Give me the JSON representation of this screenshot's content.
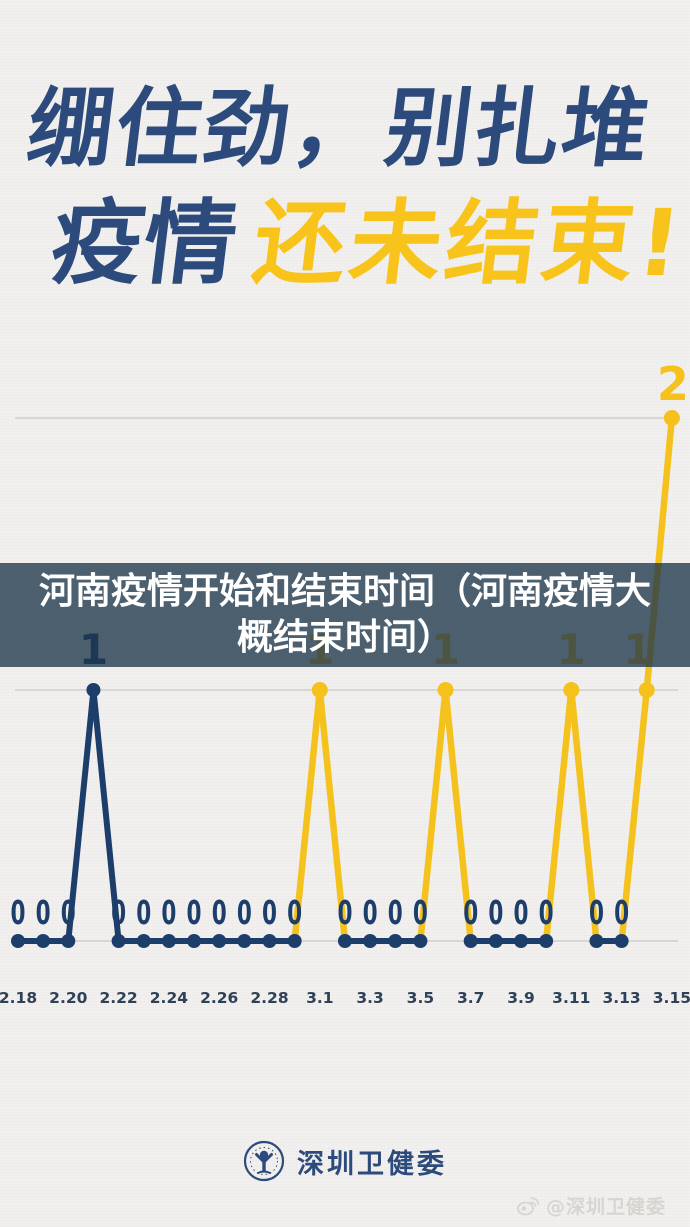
{
  "page": {
    "background": "#f1f0ee"
  },
  "header": {
    "line1_left": "绷住劲，",
    "line1_right": "别扎堆",
    "line2_navy": "疫情",
    "line2_yellow": "还未结束!",
    "navy_color": "#2c4b7c",
    "yellow_color": "#f8c41c"
  },
  "overlay": {
    "text": "河南疫情开始和结束时间（河南疫情大概结束时间）"
  },
  "chart_data": {
    "type": "line",
    "title": "",
    "xlabel": "",
    "ylabel": "",
    "ylim": [
      0,
      2
    ],
    "grid": true,
    "gridline_values": [
      0,
      1,
      2
    ],
    "x": [
      "2.18",
      "2.19",
      "2.20",
      "2.21",
      "2.22",
      "2.23",
      "2.24",
      "2.25",
      "2.26",
      "2.27",
      "2.28",
      "2.29",
      "3.1",
      "3.2",
      "3.3",
      "3.4",
      "3.5",
      "3.6",
      "3.7",
      "3.8",
      "3.9",
      "3.10",
      "3.11",
      "3.12",
      "3.13",
      "3.14",
      "3.15"
    ],
    "values": [
      0,
      0,
      0,
      1,
      0,
      0,
      0,
      0,
      0,
      0,
      0,
      0,
      1,
      0,
      0,
      0,
      0,
      1,
      0,
      0,
      0,
      0,
      1,
      0,
      0,
      1,
      2
    ],
    "point_colors": [
      "navy",
      "navy",
      "navy",
      "navy",
      "navy",
      "navy",
      "navy",
      "navy",
      "navy",
      "navy",
      "navy",
      "navy",
      "yellow",
      "navy",
      "navy",
      "navy",
      "navy",
      "yellow",
      "navy",
      "navy",
      "navy",
      "navy",
      "yellow",
      "navy",
      "navy",
      "yellow",
      "yellow"
    ],
    "point_labels": [
      "0",
      "0",
      "0",
      "1",
      "0",
      "0",
      "0",
      "0",
      "0",
      "0",
      "0",
      "0",
      "1",
      "0",
      "0",
      "0",
      "0",
      "1",
      "0",
      "0",
      "0",
      "0",
      "1",
      "0",
      "0",
      "1",
      "2"
    ],
    "x_tick_labels": [
      "2.18",
      "2.20",
      "2.22",
      "2.24",
      "2.26",
      "2.28",
      "3.1",
      "3.3",
      "3.5",
      "3.7",
      "3.9",
      "3.11",
      "3.13",
      "3.15"
    ],
    "colors": {
      "navy": "#1d3e6b",
      "yellow": "#f4c11d",
      "grid": "#c9c8c5",
      "tick_label": "#2e4157"
    }
  },
  "footer": {
    "logo_text": "深圳卫健委"
  },
  "watermark": {
    "text": "@深圳卫健委"
  }
}
